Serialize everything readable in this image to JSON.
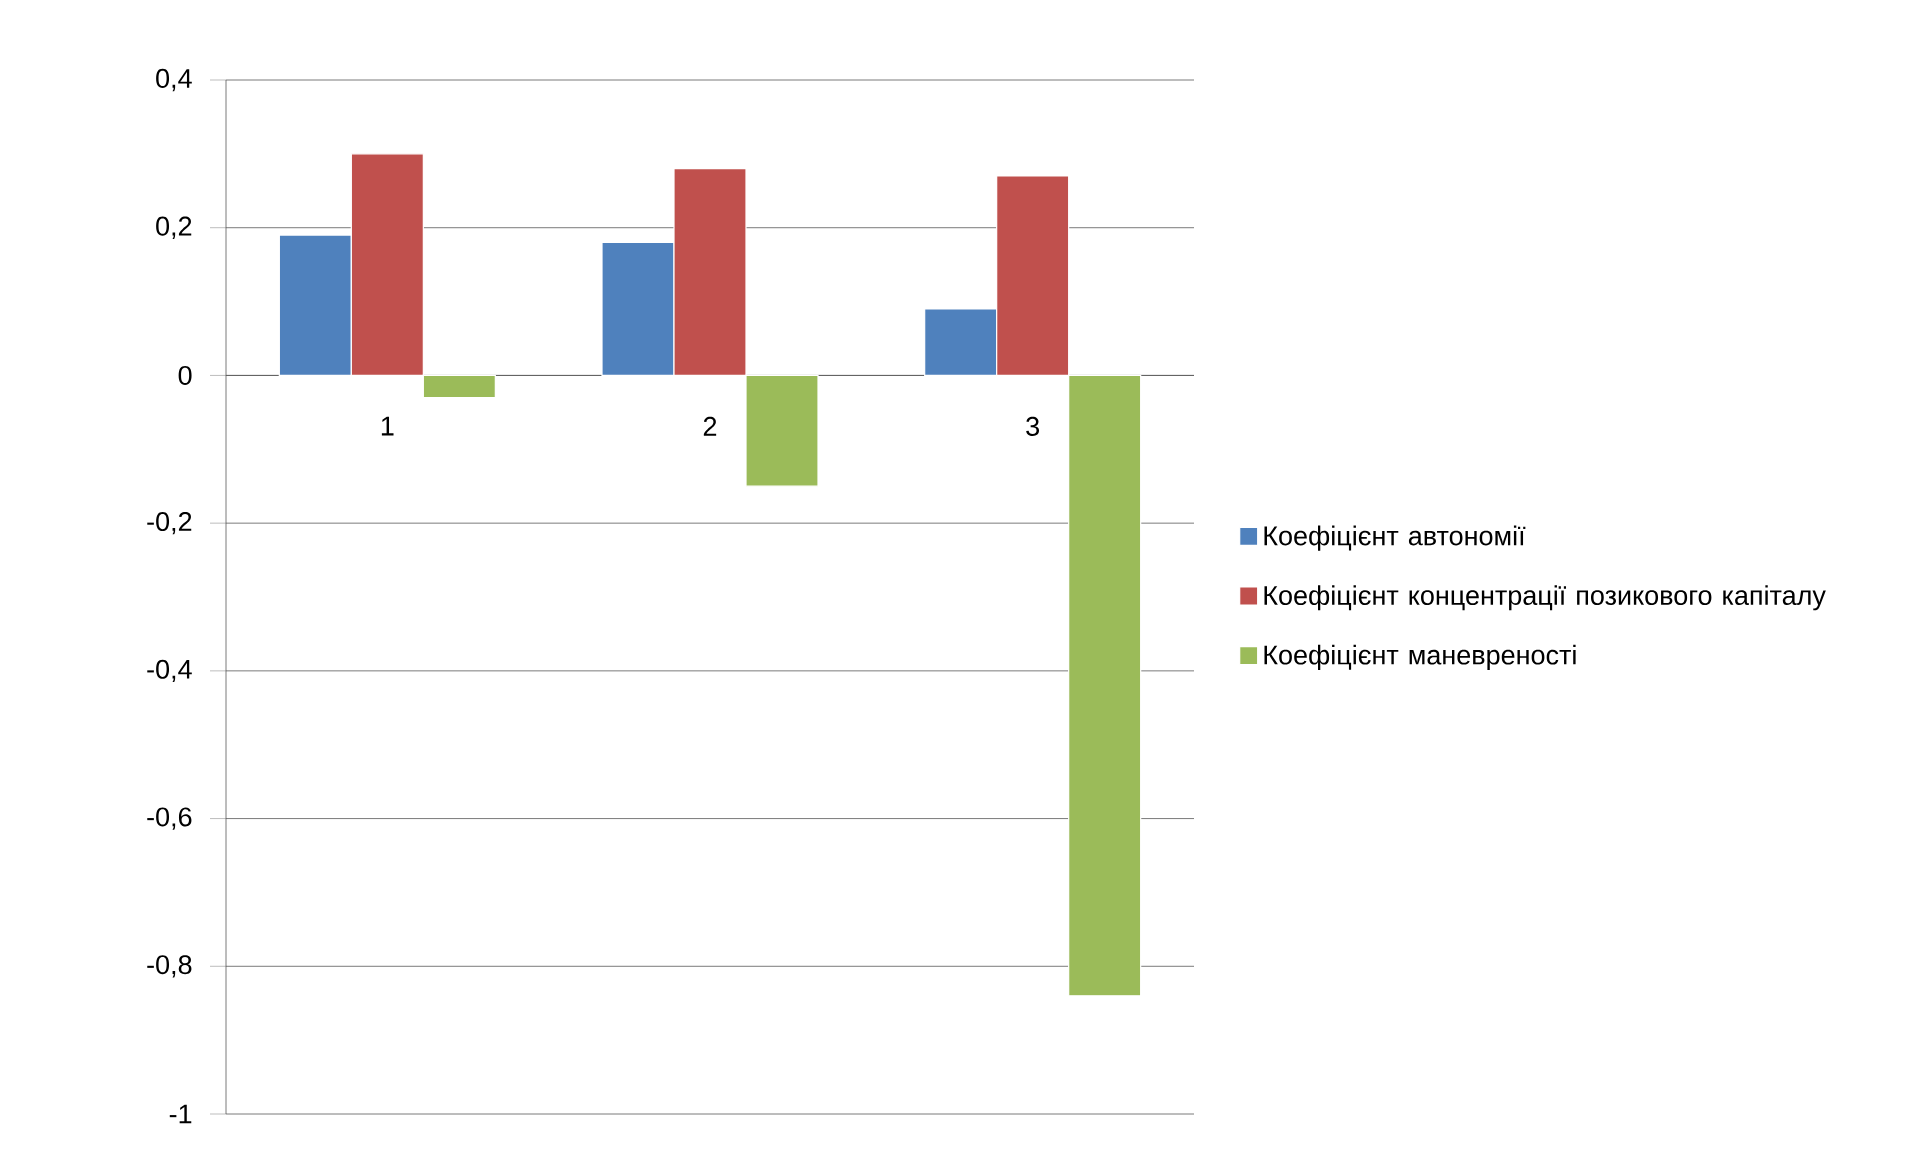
{
  "chart_data": {
    "type": "bar",
    "categories": [
      "1",
      "2",
      "3"
    ],
    "series": [
      {
        "name": "Коефіцієнт автономії",
        "color": "#4f81bd",
        "values": [
          0.19,
          0.18,
          0.09
        ]
      },
      {
        "name": "Коефіцієнт концентрації позикового капіталу",
        "color": "#c0504d",
        "values": [
          0.3,
          0.28,
          0.27
        ]
      },
      {
        "name": "Коефіцієнт маневреності",
        "color": "#9bbb59",
        "values": [
          -0.03,
          -0.15,
          -0.84
        ]
      }
    ],
    "ylim": [
      -1,
      0.4
    ],
    "yticks": [
      {
        "value": -1,
        "label": "-1"
      },
      {
        "value": -0.8,
        "label": "-0,8"
      },
      {
        "value": -0.6,
        "label": "-0,6"
      },
      {
        "value": -0.4,
        "label": "-0,4"
      },
      {
        "value": -0.2,
        "label": "-0,2"
      },
      {
        "value": 0,
        "label": "0"
      },
      {
        "value": 0.2,
        "label": "0,2"
      },
      {
        "value": 0.4,
        "label": "0,4"
      }
    ],
    "grid": "y",
    "legend": "right"
  }
}
